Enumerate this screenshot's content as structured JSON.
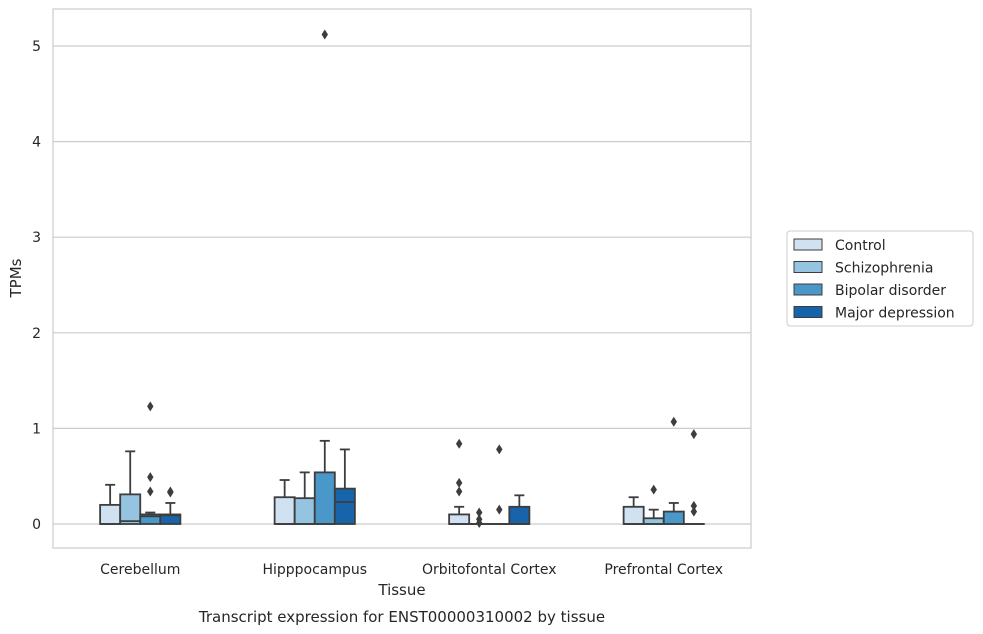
{
  "chart_data": {
    "type": "box",
    "title": "Transcript expression for ENST00000310002 by tissue",
    "xlabel": "Tissue",
    "ylabel": "TPMs",
    "ylim": [
      -0.25,
      5.4
    ],
    "yticks": [
      0,
      1,
      2,
      3,
      4,
      5
    ],
    "grid": true,
    "legend_position": "right",
    "categories": [
      "Cerebellum",
      "Hipppocampus",
      "Orbitofontal Cortex",
      "Prefrontal Cortex"
    ],
    "series": [
      {
        "name": "Control",
        "color": "#d0e1f2",
        "boxes": [
          {
            "q1": 0.0,
            "median": 0.0,
            "q3": 0.2,
            "whisker_low": 0.0,
            "whisker_high": 0.41,
            "outliers": []
          },
          {
            "q1": 0.0,
            "median": 0.0,
            "q3": 0.28,
            "whisker_low": 0.0,
            "whisker_high": 0.46,
            "outliers": []
          },
          {
            "q1": 0.0,
            "median": 0.0,
            "q3": 0.1,
            "whisker_low": 0.0,
            "whisker_high": 0.18,
            "outliers": [
              0.84,
              0.43,
              0.34
            ]
          },
          {
            "q1": 0.0,
            "median": 0.0,
            "q3": 0.18,
            "whisker_low": 0.0,
            "whisker_high": 0.28,
            "outliers": []
          }
        ]
      },
      {
        "name": "Schizophrenia",
        "color": "#94c4df",
        "boxes": [
          {
            "q1": 0.0,
            "median": 0.03,
            "q3": 0.31,
            "whisker_low": 0.0,
            "whisker_high": 0.76,
            "outliers": []
          },
          {
            "q1": 0.0,
            "median": 0.0,
            "q3": 0.27,
            "whisker_low": 0.0,
            "whisker_high": 0.54,
            "outliers": []
          },
          {
            "q1": 0.0,
            "median": 0.0,
            "q3": 0.0,
            "whisker_low": 0.0,
            "whisker_high": 0.0,
            "outliers": [
              0.12,
              0.05,
              0.01
            ]
          },
          {
            "q1": 0.0,
            "median": 0.0,
            "q3": 0.06,
            "whisker_low": 0.0,
            "whisker_high": 0.15,
            "outliers": [
              0.36
            ]
          }
        ]
      },
      {
        "name": "Bipolar disorder",
        "color": "#4a98c9",
        "boxes": [
          {
            "q1": 0.0,
            "median": 0.08,
            "q3": 0.1,
            "whisker_low": 0.0,
            "whisker_high": 0.12,
            "outliers": [
              1.23,
              0.49,
              0.34
            ]
          },
          {
            "q1": 0.0,
            "median": 0.0,
            "q3": 0.54,
            "whisker_low": 0.0,
            "whisker_high": 0.87,
            "outliers": [
              5.12
            ]
          },
          {
            "q1": 0.0,
            "median": 0.0,
            "q3": 0.0,
            "whisker_low": 0.0,
            "whisker_high": 0.0,
            "outliers": [
              0.78,
              0.15
            ]
          },
          {
            "q1": 0.0,
            "median": 0.0,
            "q3": 0.13,
            "whisker_low": 0.0,
            "whisker_high": 0.22,
            "outliers": [
              1.07
            ]
          }
        ]
      },
      {
        "name": "Major depression",
        "color": "#1764ab",
        "boxes": [
          {
            "q1": 0.0,
            "median": 0.09,
            "q3": 0.1,
            "whisker_low": 0.0,
            "whisker_high": 0.22,
            "outliers": [
              0.34,
              0.33
            ]
          },
          {
            "q1": 0.0,
            "median": 0.23,
            "q3": 0.37,
            "whisker_low": 0.0,
            "whisker_high": 0.78,
            "outliers": []
          },
          {
            "q1": 0.0,
            "median": 0.0,
            "q3": 0.18,
            "whisker_low": 0.0,
            "whisker_high": 0.3,
            "outliers": []
          },
          {
            "q1": 0.0,
            "median": 0.0,
            "q3": 0.0,
            "whisker_low": 0.0,
            "whisker_high": 0.0,
            "outliers": [
              0.94,
              0.19,
              0.13
            ]
          }
        ]
      }
    ]
  }
}
